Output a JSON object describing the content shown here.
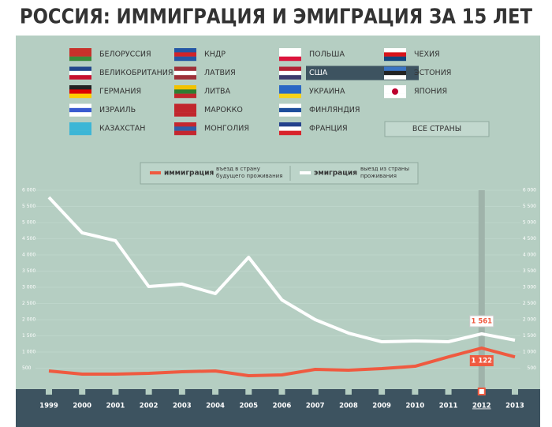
{
  "title": "РОССИЯ: ИММИГРАЦИЯ И ЭМИГРАЦИЯ ЗА 15 ЛЕТ",
  "countries": [
    [
      "БЕЛОРУССИЯ",
      "ВЕЛИКОБРИТАНИЯ",
      "ГЕРМАНИЯ",
      "ИЗРАИЛЬ",
      "КАЗАХСТАН"
    ],
    [
      "КНДР",
      "ЛАТВИЯ",
      "ЛИТВА",
      "МАРОККО",
      "МОНГОЛИЯ"
    ],
    [
      "ПОЛЬША",
      "США",
      "УКРАИНА",
      "ФИНЛЯНДИЯ",
      "ФРАНЦИЯ"
    ],
    [
      "ЧЕХИЯ",
      "ЭСТОНИЯ",
      "ЯПОНИЯ"
    ]
  ],
  "all_button": "ВСЕ СТРАНЫ",
  "chart_data": {
    "type": "line",
    "categories": [
      1999,
      2000,
      2001,
      2002,
      2003,
      2004,
      2005,
      2006,
      2007,
      2008,
      2009,
      2010,
      2011,
      2012,
      2013
    ],
    "series": [
      {
        "name": "иммиграция",
        "note": [
          "въезд в страну",
          "будущего проживания"
        ],
        "color": "#ef5a40",
        "values": [
          415,
          317,
          317,
          340,
          390,
          415,
          268,
          293,
          463,
          440,
          488,
          560,
          850,
          1122,
          850
        ],
        "value_labels": [
          null,
          null,
          null,
          null,
          null,
          null,
          null,
          null,
          null,
          null,
          null,
          null,
          null,
          "1 122",
          null
        ]
      },
      {
        "name": "эмиграция",
        "note": [
          "выезд из страны",
          "проживания"
        ],
        "color": "#ffffff",
        "values": [
          5780,
          4683,
          4440,
          3024,
          3100,
          2805,
          3927,
          2610,
          2000,
          1585,
          1317,
          1340,
          1317,
          1561,
          1366
        ],
        "value_labels": [
          null,
          null,
          null,
          null,
          null,
          null,
          null,
          null,
          null,
          null,
          null,
          null,
          null,
          "1 561",
          null
        ]
      }
    ],
    "ylim": [
      0,
      6000
    ],
    "yticks": [
      {
        "value": 500,
        "label": "500"
      },
      {
        "value": 1000,
        "label": "1 000"
      },
      {
        "value": 1500,
        "label": "1 500"
      },
      {
        "value": 2000,
        "label": "2 000"
      },
      {
        "value": 2500,
        "label": "2 500"
      },
      {
        "value": 3000,
        "label": "3 000"
      },
      {
        "value": 3500,
        "label": "3 500"
      },
      {
        "value": 4000,
        "label": "4 000"
      },
      {
        "value": 4500,
        "label": "4 500"
      },
      {
        "value": 5000,
        "label": "5 000"
      },
      {
        "value": 5500,
        "label": "5 500"
      },
      {
        "value": 6000,
        "label": "6 000"
      }
    ],
    "grid": true
  }
}
